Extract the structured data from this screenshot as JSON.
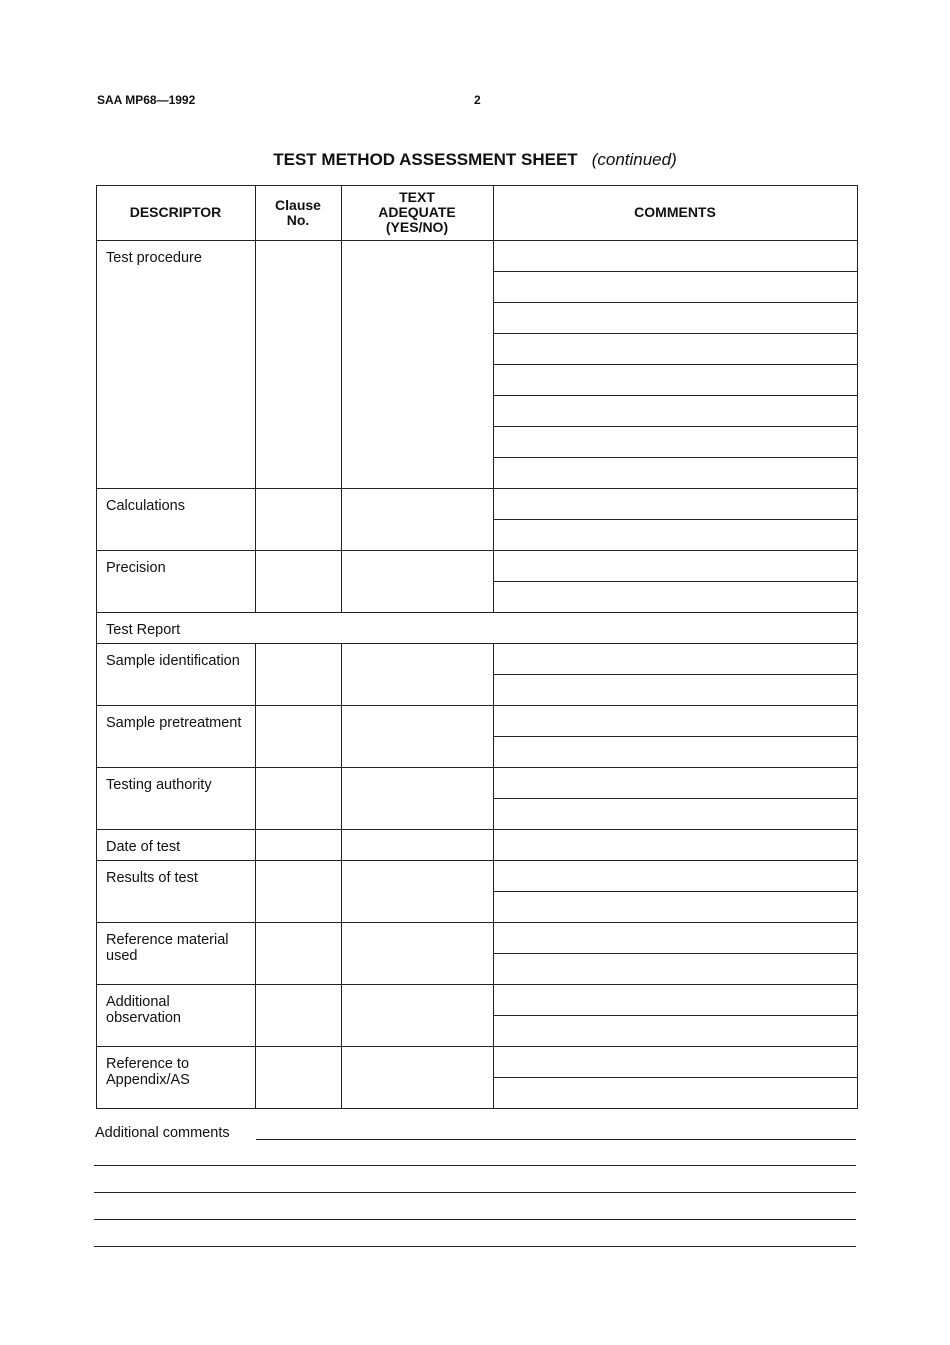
{
  "header": {
    "doc_id": "SAA MP68—1992",
    "page_number": "2"
  },
  "title": {
    "main": "TEST METHOD ASSESSMENT SHEET",
    "suffix": "(continued)"
  },
  "table": {
    "columns": [
      "DESCRIPTOR",
      "Clause No.",
      "TEXT ADEQUATE (YES/NO)",
      "COMMENTS"
    ],
    "rows": [
      {
        "label": "Test procedure"
      },
      {
        "label": "Calculations"
      },
      {
        "label": "Precision"
      },
      {
        "label": "Test Report",
        "section": true
      },
      {
        "label": "Sample identification"
      },
      {
        "label": "Sample pretreatment"
      },
      {
        "label": "Testing authority"
      },
      {
        "label": "Date of test"
      },
      {
        "label": "Results of test"
      },
      {
        "label": "Reference material used"
      },
      {
        "label": "Additional observation"
      },
      {
        "label": "Reference to Appendix/AS"
      }
    ]
  },
  "footer": {
    "additional_comments_label": "Additional comments"
  }
}
